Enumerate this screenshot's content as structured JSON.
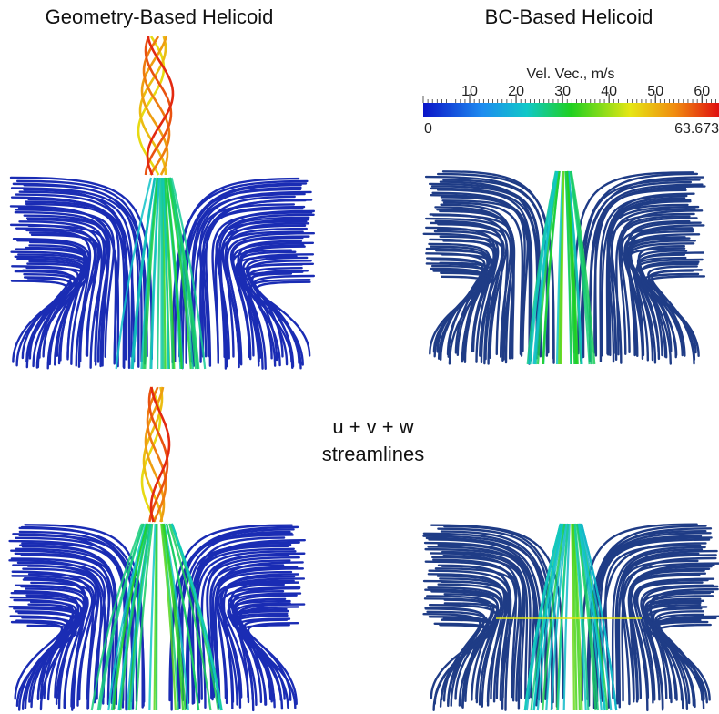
{
  "header": {
    "left_title": "Geometry-Based Helicoid",
    "right_title": "BC-Based Helicoid"
  },
  "colorbar": {
    "title": "Vel. Vec., m/s",
    "range": [
      0,
      63.673
    ],
    "ticks": [
      10,
      20,
      30,
      40,
      50,
      60
    ]
  },
  "caption": {
    "line1": "u + v + w",
    "line2": "streamlines"
  }
}
